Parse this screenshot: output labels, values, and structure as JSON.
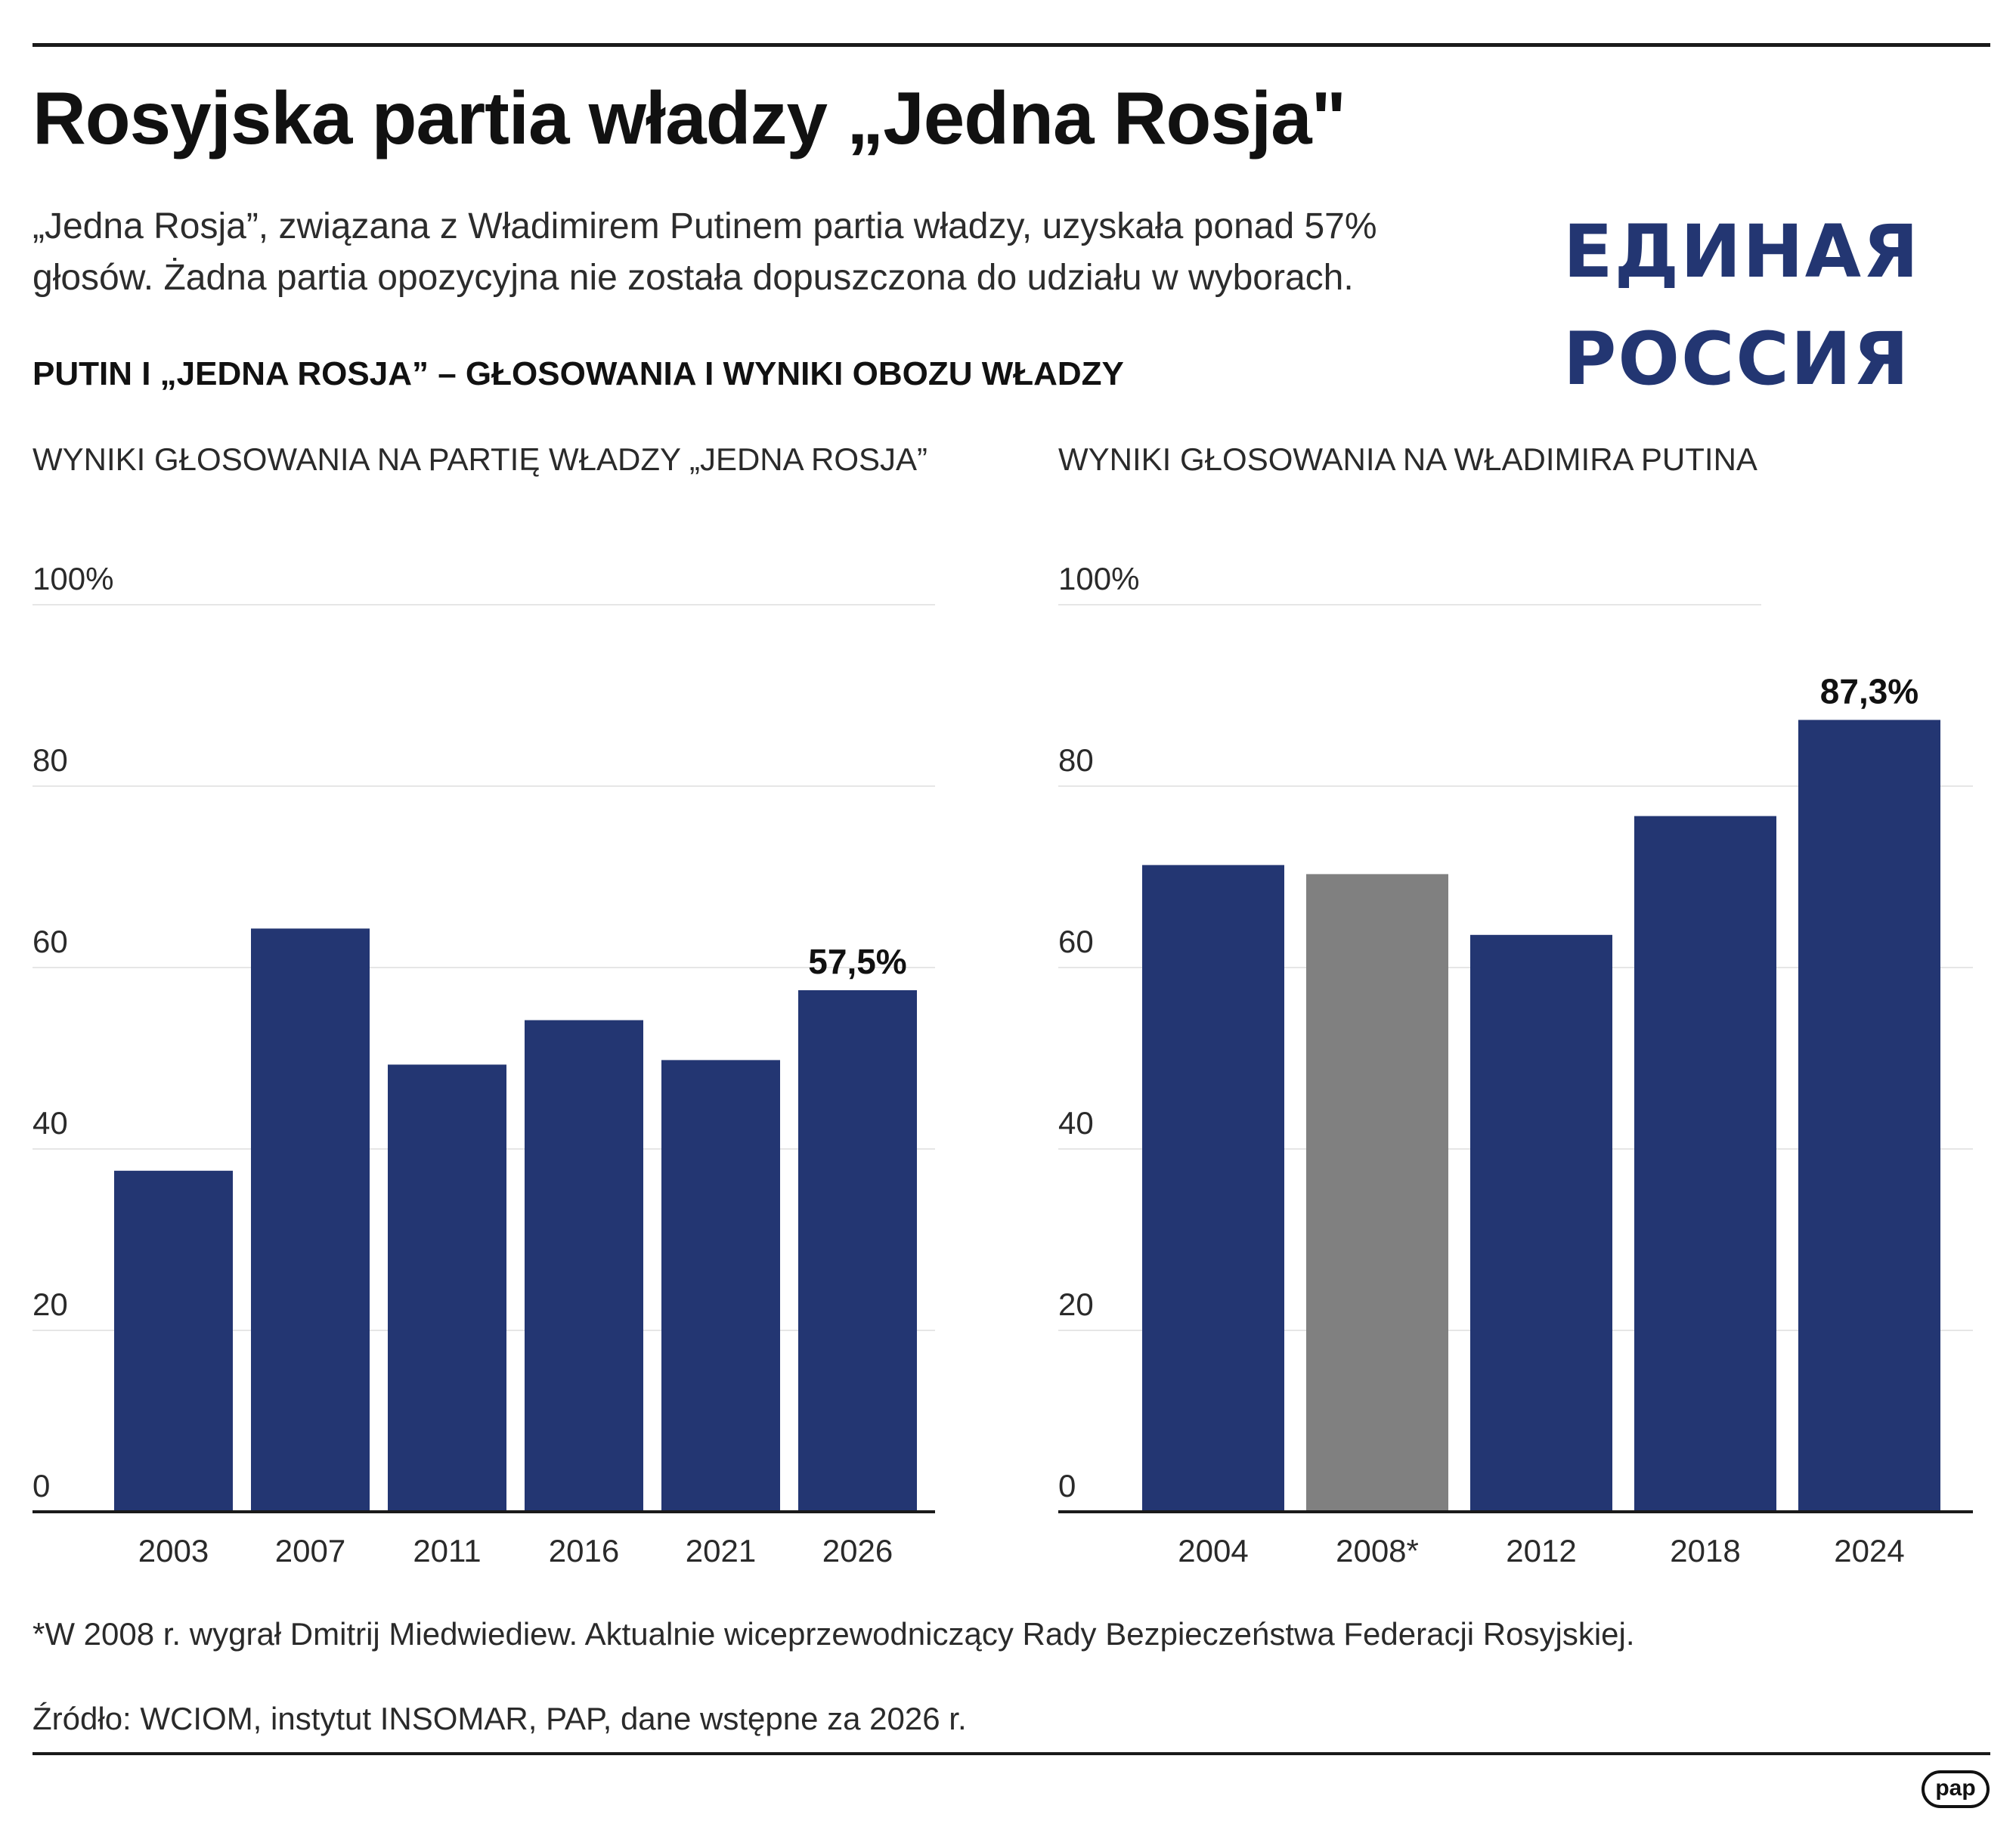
{
  "title": "Rosyjska partia władzy „Jedna Rosja\"",
  "lead": "„Jedna Rosja”, związana z Władimirem Putinem partia władzy, uzyskała ponad 57% głosów. Żadna partia opozycyjna nie została dopuszczona do udziału w wyborach.",
  "logo": {
    "line1": "ЕДИНАЯ",
    "line2": "РОССИЯ"
  },
  "section_title": "PUTIN I „JEDNA ROSJA” – GŁOSOWANIA I WYNIKI OBOZU WŁADZY",
  "footnote": "*W 2008 r. wygrał Dmitrij Miedwiediew. Aktualnie wiceprzewodniczący Rady Bezpieczeństwa Federacji Rosyjskiej.",
  "source": "Źródło: WCIOM, instytut INSOMAR, PAP, dane wstępne za 2026 r.",
  "pap_logo": "pap",
  "colors": {
    "bar": "#233672",
    "bar_highlight": "#808080",
    "grid": "#e6e6e6",
    "axis": "#1a1a1a"
  },
  "chart_data": [
    {
      "type": "bar",
      "title": "WYNIKI GŁOSOWANIA NA PARTIĘ WŁADZY „JEDNA ROSJA”",
      "categories": [
        "2003",
        "2007",
        "2011",
        "2016",
        "2021",
        "2026"
      ],
      "values": [
        37.6,
        64.3,
        49.3,
        54.2,
        49.8,
        57.5
      ],
      "ylim": [
        0,
        100
      ],
      "yticks": [
        "0",
        "20",
        "40",
        "60",
        "80",
        "100%"
      ],
      "data_labels": {
        "2026": "57,5%"
      },
      "grid": true,
      "colors": [
        "#233672",
        "#233672",
        "#233672",
        "#233672",
        "#233672",
        "#233672"
      ]
    },
    {
      "type": "bar",
      "title": "WYNIKI GŁOSOWANIA NA WŁADIMIRA PUTINA",
      "categories": [
        "2004",
        "2008*",
        "2012",
        "2018",
        "2024"
      ],
      "values": [
        71.3,
        70.3,
        63.6,
        76.7,
        87.3
      ],
      "ylim": [
        0,
        100
      ],
      "yticks": [
        "0",
        "20",
        "40",
        "60",
        "80",
        "100%"
      ],
      "data_labels": {
        "2024": "87,3%"
      },
      "grid": true,
      "colors": [
        "#233672",
        "#808080",
        "#233672",
        "#233672",
        "#233672"
      ]
    }
  ]
}
